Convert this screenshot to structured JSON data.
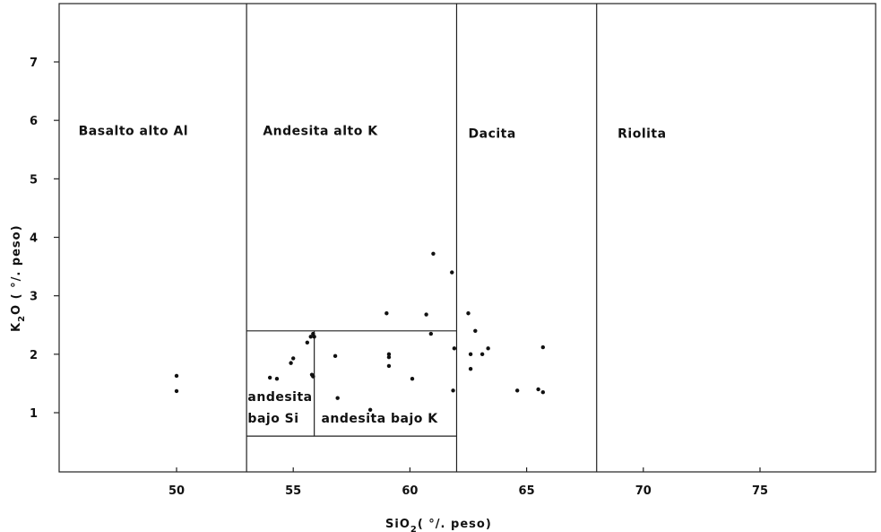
{
  "chart_data": {
    "type": "scatter",
    "xlabel_parts": [
      "SiO",
      "2",
      "( °/. peso)"
    ],
    "ylabel_parts": [
      "K",
      "2",
      "O ( °/. peso)"
    ],
    "xlim": [
      45,
      80
    ],
    "ylim": [
      0,
      8
    ],
    "x_ticks": [
      50,
      55,
      60,
      65,
      70,
      75
    ],
    "y_ticks": [
      1,
      2,
      3,
      4,
      5,
      6,
      7
    ],
    "x_tick_labels": [
      "50",
      "55",
      "60",
      "65",
      "70",
      "75"
    ],
    "y_tick_labels": [
      "1",
      "2",
      "3",
      "4",
      "5",
      "6",
      "7"
    ],
    "field_boundaries": {
      "vertical": [
        53,
        62,
        68
      ],
      "low_k_box": {
        "x": [
          53,
          62
        ],
        "y_top": 2.4,
        "y_bottom": 0.6
      },
      "low_si_split_x": 55.9
    },
    "fields": [
      {
        "label": "Basalto alto Al",
        "x": 45.8,
        "y": 5.75
      },
      {
        "label": "Andesita alto K",
        "x": 53.7,
        "y": 5.75
      },
      {
        "label": "Dacita",
        "x": 62.5,
        "y": 5.7
      },
      {
        "label": "Riolita",
        "x": 68.9,
        "y": 5.7
      },
      {
        "label": "andesita",
        "x": 53.05,
        "y": 1.2
      },
      {
        "label": "bajo Si",
        "x": 53.05,
        "y": 0.83
      },
      {
        "label": "andesita bajo K",
        "x": 56.2,
        "y": 0.83
      }
    ],
    "points": [
      [
        50.0,
        1.63
      ],
      [
        50.0,
        1.37
      ],
      [
        54.0,
        1.6
      ],
      [
        54.3,
        1.58
      ],
      [
        54.9,
        1.85
      ],
      [
        55.0,
        1.93
      ],
      [
        55.6,
        2.2
      ],
      [
        55.75,
        2.3
      ],
      [
        55.85,
        2.35
      ],
      [
        55.9,
        2.3
      ],
      [
        55.8,
        1.65
      ],
      [
        55.85,
        1.62
      ],
      [
        56.8,
        1.97
      ],
      [
        56.9,
        1.25
      ],
      [
        58.3,
        1.05
      ],
      [
        59.0,
        2.7
      ],
      [
        59.1,
        2.0
      ],
      [
        59.1,
        1.95
      ],
      [
        59.1,
        1.8
      ],
      [
        60.1,
        1.58
      ],
      [
        60.7,
        2.68
      ],
      [
        60.9,
        2.35
      ],
      [
        61.0,
        3.72
      ],
      [
        61.8,
        3.4
      ],
      [
        61.9,
        2.1
      ],
      [
        61.85,
        1.38
      ],
      [
        62.5,
        2.7
      ],
      [
        62.6,
        2.0
      ],
      [
        62.6,
        1.75
      ],
      [
        62.8,
        2.4
      ],
      [
        63.1,
        2.0
      ],
      [
        63.35,
        2.1
      ],
      [
        64.6,
        1.38
      ],
      [
        65.5,
        1.4
      ],
      [
        65.7,
        2.12
      ],
      [
        65.7,
        1.35
      ]
    ]
  }
}
